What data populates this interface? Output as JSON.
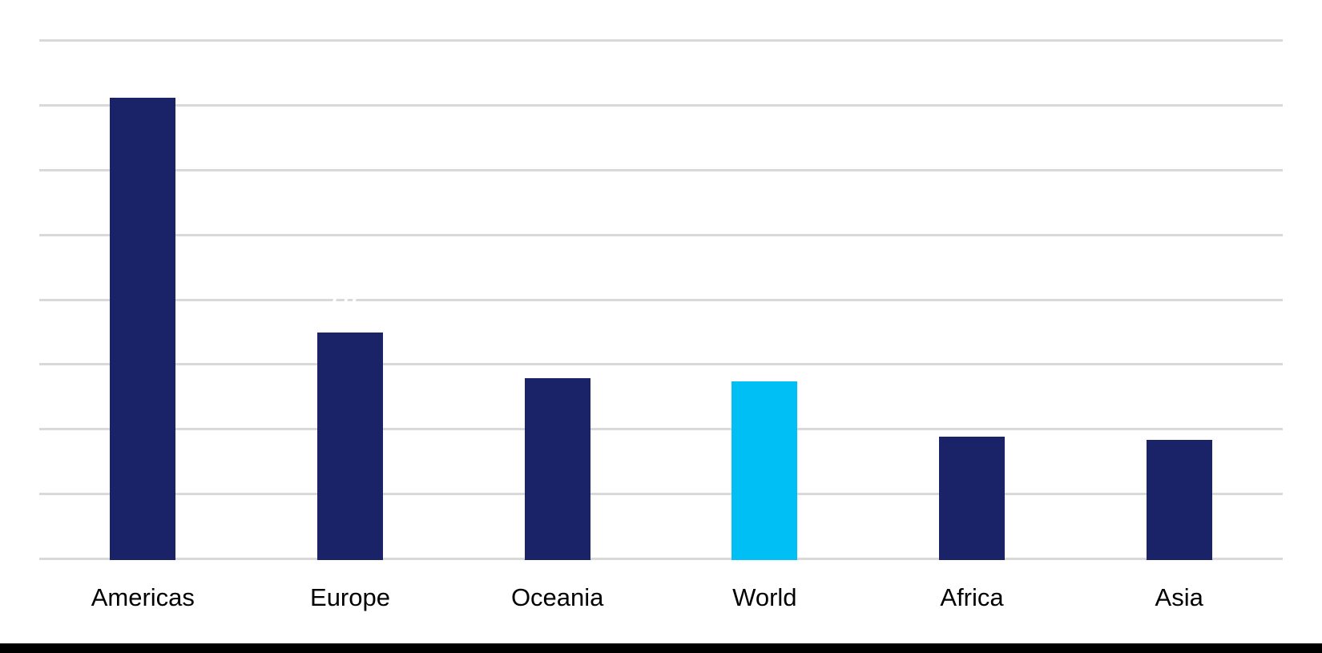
{
  "page": {
    "background": "#FFFFFF",
    "footer_bar_color": "#000000"
  },
  "chart_data": {
    "type": "bar",
    "title": "",
    "xlabel": "",
    "ylabel": "",
    "categories": [
      "Americas",
      "Europe",
      "Oceania",
      "World",
      "Africa",
      "Asia"
    ],
    "values": [
      7.1,
      3.5,
      2.8,
      2.75,
      1.9,
      1.85
    ],
    "ylim": [
      0,
      8
    ],
    "gridline_step": 1,
    "grid": true,
    "legend": false,
    "y_tick_labels_visible": false,
    "bar_color": "#1B2368",
    "highlight": {
      "category": "World",
      "index": 3,
      "color": "#00BFF5"
    },
    "gridline_color": "#D9D9D9",
    "label_color": "#000000",
    "hidden_label": {
      "text": "7.7",
      "color": "#FFFFFF"
    }
  }
}
